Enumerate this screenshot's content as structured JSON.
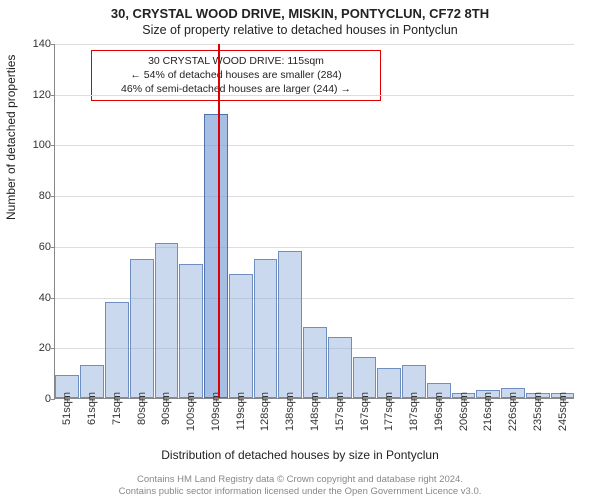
{
  "title": {
    "line1": "30, CRYSTAL WOOD DRIVE, MISKIN, PONTYCLUN, CF72 8TH",
    "line2": "Size of property relative to detached houses in Pontyclun"
  },
  "axes": {
    "ylabel": "Number of detached properties",
    "xlabel": "Distribution of detached houses by size in Pontyclun",
    "ymax": 140,
    "yticks": [
      0,
      20,
      40,
      60,
      80,
      100,
      120,
      140
    ],
    "grid_color": "#dddddd",
    "axis_color": "#888888"
  },
  "marker": {
    "x_value": 115,
    "color": "#dd0000"
  },
  "annotation": {
    "line1": "30 CRYSTAL WOOD DRIVE: 115sqm",
    "line2": "← 54% of detached houses are smaller (284)",
    "line3": "46% of semi-detached houses are larger (244) →",
    "border_color": "#dd0000"
  },
  "histogram": {
    "x_start": 51,
    "x_end": 255,
    "bar_color": "rgba(140,170,220,0.45)",
    "bar_border": "#6e8fc0",
    "highlight_index": 6,
    "bins": [
      {
        "label": "51sqm",
        "v": 9
      },
      {
        "label": "61sqm",
        "v": 13
      },
      {
        "label": "71sqm",
        "v": 38
      },
      {
        "label": "80sqm",
        "v": 55
      },
      {
        "label": "90sqm",
        "v": 61
      },
      {
        "label": "100sqm",
        "v": 53
      },
      {
        "label": "109sqm",
        "v": 112
      },
      {
        "label": "119sqm",
        "v": 49
      },
      {
        "label": "128sqm",
        "v": 55
      },
      {
        "label": "138sqm",
        "v": 58
      },
      {
        "label": "148sqm",
        "v": 28
      },
      {
        "label": "157sqm",
        "v": 24
      },
      {
        "label": "167sqm",
        "v": 16
      },
      {
        "label": "177sqm",
        "v": 12
      },
      {
        "label": "187sqm",
        "v": 13
      },
      {
        "label": "196sqm",
        "v": 6
      },
      {
        "label": "206sqm",
        "v": 2
      },
      {
        "label": "216sqm",
        "v": 3
      },
      {
        "label": "226sqm",
        "v": 4
      },
      {
        "label": "235sqm",
        "v": 2
      },
      {
        "label": "245sqm",
        "v": 2
      }
    ]
  },
  "footer": {
    "line1": "Contains HM Land Registry data © Crown copyright and database right 2024.",
    "line2": "Contains public sector information licensed under the Open Government Licence v3.0."
  }
}
